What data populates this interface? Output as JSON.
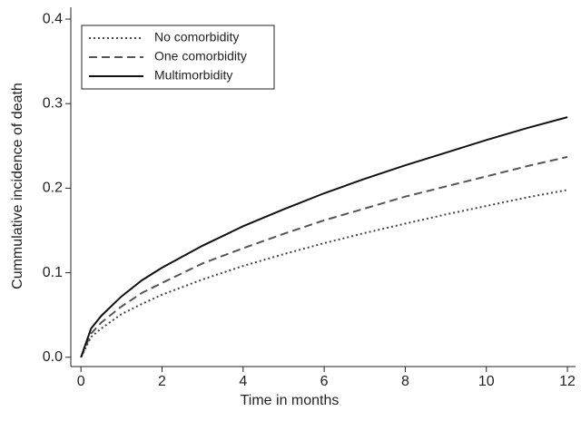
{
  "chart_data": {
    "type": "line",
    "x_label": "Time in months",
    "y_label": "Cummulative incidence of death",
    "x": [
      0,
      0.25,
      0.5,
      1,
      1.5,
      2,
      3,
      4,
      5,
      6,
      7,
      8,
      9,
      10,
      11,
      12
    ],
    "series": [
      {
        "name": "No comorbidity",
        "color": "#444444",
        "dash": "dotted",
        "values": [
          0,
          0.024,
          0.034,
          0.051,
          0.063,
          0.074,
          0.092,
          0.108,
          0.122,
          0.135,
          0.147,
          0.158,
          0.169,
          0.179,
          0.189,
          0.198
        ]
      },
      {
        "name": "One comorbidity",
        "color": "#555555",
        "dash": "dashed",
        "values": [
          0,
          0.028,
          0.041,
          0.06,
          0.076,
          0.088,
          0.111,
          0.129,
          0.146,
          0.162,
          0.176,
          0.19,
          0.202,
          0.214,
          0.226,
          0.237
        ]
      },
      {
        "name": "Multimorbidity",
        "color": "#111111",
        "dash": "solid",
        "values": [
          0,
          0.034,
          0.049,
          0.072,
          0.091,
          0.106,
          0.132,
          0.155,
          0.175,
          0.194,
          0.211,
          0.227,
          0.242,
          0.257,
          0.271,
          0.284
        ]
      }
    ],
    "xlim": [
      -0.25,
      12.2
    ],
    "ylim": [
      -0.011,
      0.414
    ],
    "xticks": [
      0,
      2,
      4,
      6,
      8,
      10,
      12
    ],
    "yticks": [
      {
        "value": 0,
        "label": "0.0"
      },
      0.1,
      0.2,
      0.3,
      0.4
    ],
    "legend": "upper left",
    "grid": false
  }
}
